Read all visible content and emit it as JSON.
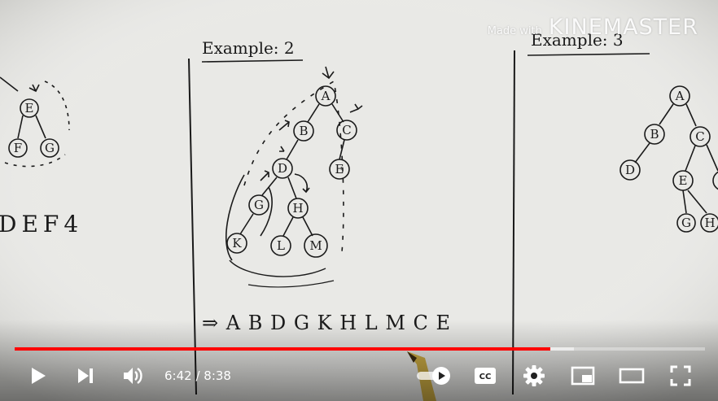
{
  "watermark": {
    "made_with": "Made with",
    "brand": "KINEMASTER"
  },
  "whiteboard": {
    "example2_title": "Example: 2",
    "example3_title": "Example: 3",
    "left_partial_text": "DEF4",
    "traversal_result": "⇒ A B D G K H L M C E",
    "tree2_nodes": [
      "A",
      "B",
      "C",
      "D",
      "E",
      "G",
      "H",
      "K",
      "L",
      "M"
    ],
    "tree3_nodes": [
      "A",
      "B",
      "C",
      "D",
      "E",
      "G",
      "H"
    ],
    "left_nodes": [
      "E",
      "F",
      "G"
    ]
  },
  "player": {
    "current_time": "6:42",
    "separator": " / ",
    "duration": "8:38",
    "progress_fraction": 0.776,
    "buffered_fraction": 0.81,
    "autoplay_on": true
  },
  "colors": {
    "progress": "#ff0000",
    "board": "#e9e9e6",
    "ink": "#1a1a1a"
  },
  "icons": {
    "play": "play-icon",
    "next": "next-icon",
    "volume": "volume-icon",
    "autoplay": "autoplay-toggle-icon",
    "captions": "captions-icon",
    "settings": "gear-icon",
    "miniplayer": "miniplayer-icon",
    "theater": "theater-icon",
    "fullscreen": "fullscreen-icon"
  }
}
